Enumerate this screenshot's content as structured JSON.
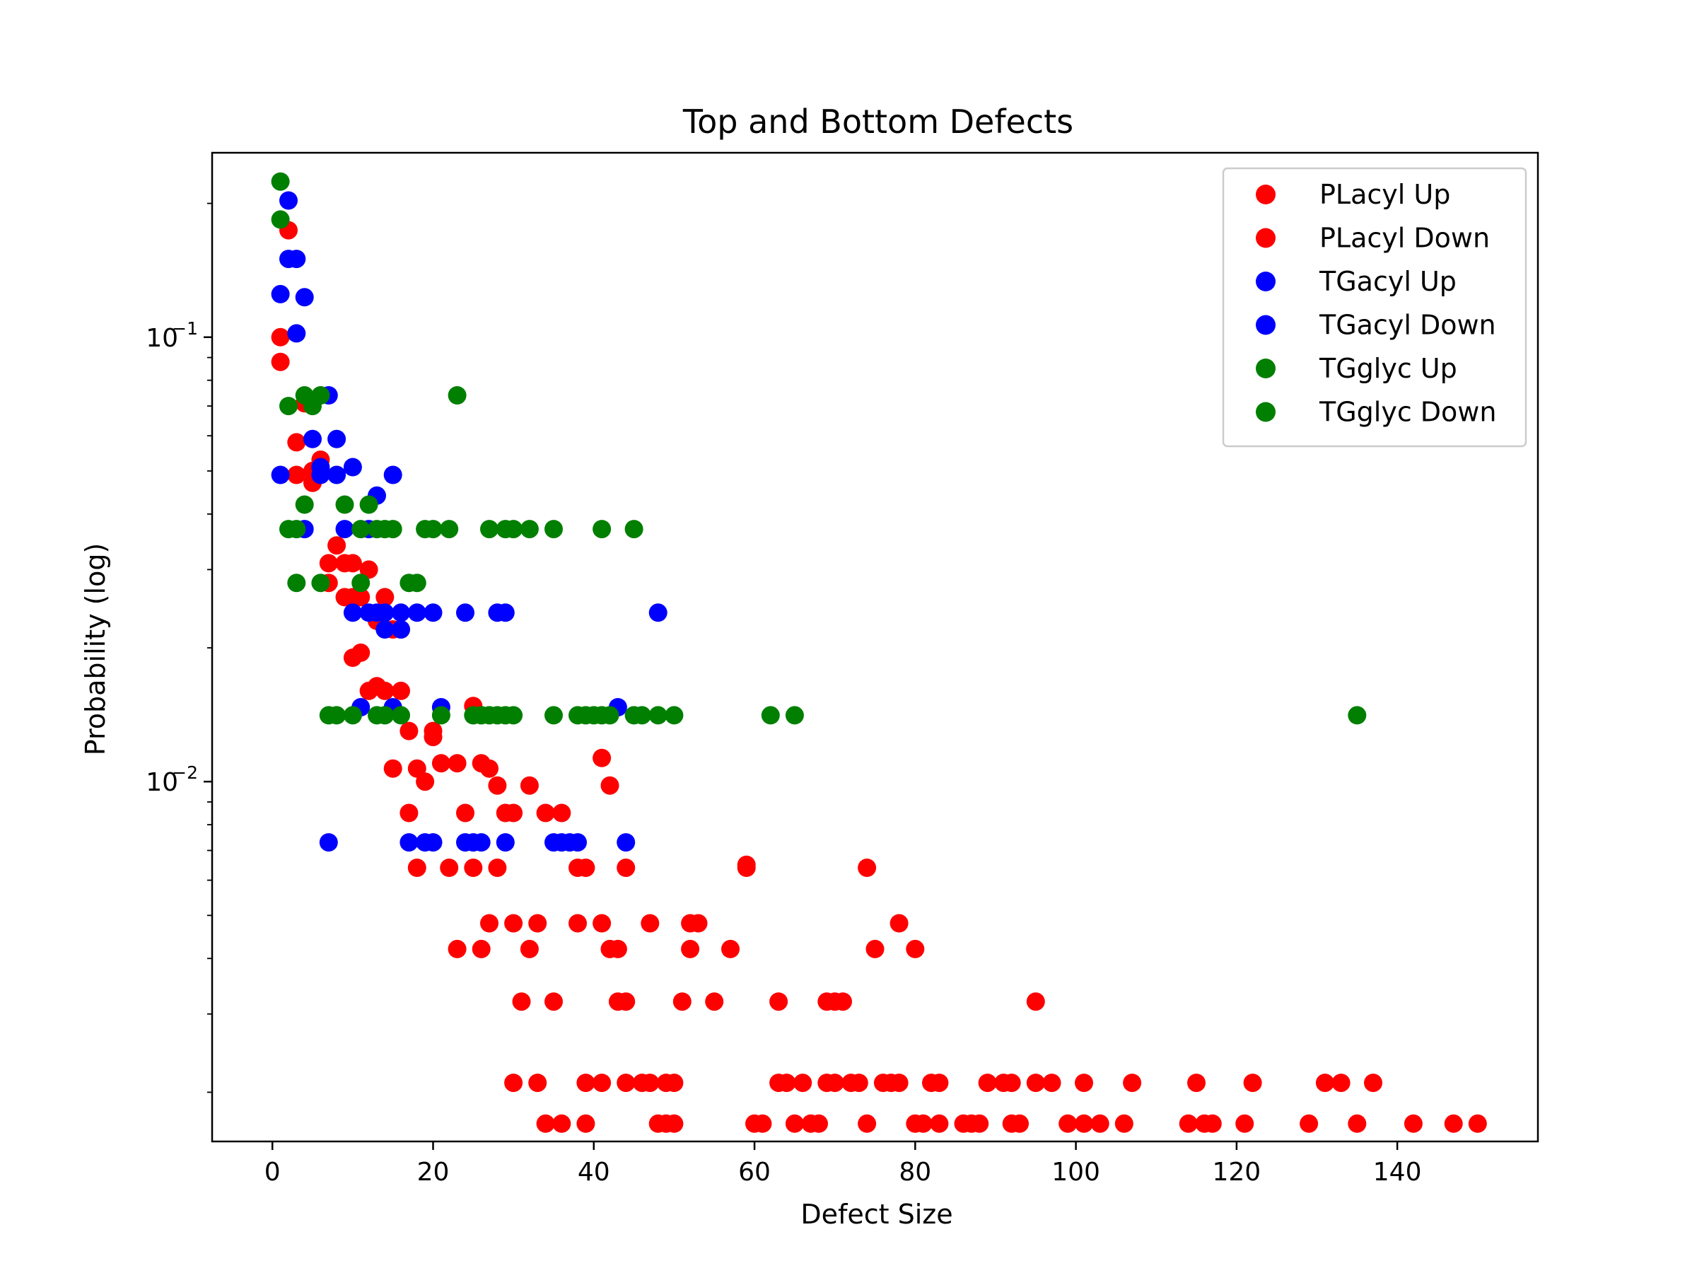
{
  "chart_data": {
    "type": "scatter",
    "title": "Top and Bottom Defects",
    "xlabel": "Defect Size",
    "ylabel": "Probability (log)",
    "xlim": [
      -7.5,
      157.5
    ],
    "ylim": [
      0.00155,
      0.26
    ],
    "yscale": "log",
    "grid": false,
    "legend_position": "top-right",
    "x_ticks": [
      0,
      20,
      40,
      60,
      80,
      100,
      120,
      140
    ],
    "x_tick_labels": [
      "0",
      "20",
      "40",
      "60",
      "80",
      "100",
      "120",
      "140"
    ],
    "y_ticks": [
      0.1,
      0.01
    ],
    "y_tick_labels": [
      {
        "base": "10",
        "exp": "−1"
      },
      {
        "base": "10",
        "exp": "−2"
      }
    ],
    "series": [
      {
        "name": "PLacyl Up",
        "color": "#ff0000",
        "points": [
          [
            1,
            0.1
          ],
          [
            2,
            0.174
          ],
          [
            3,
            0.058
          ],
          [
            4,
            0.071
          ],
          [
            5,
            0.05
          ],
          [
            6,
            0.053
          ],
          [
            7,
            0.031
          ],
          [
            9,
            0.031
          ],
          [
            10,
            0.026
          ],
          [
            12,
            0.03
          ],
          [
            14,
            0.026
          ],
          [
            16,
            0.022
          ],
          [
            17,
            0.013
          ],
          [
            19,
            0.01
          ],
          [
            20,
            0.013
          ],
          [
            21,
            0.011
          ],
          [
            23,
            0.011
          ],
          [
            24,
            0.0085
          ],
          [
            26,
            0.011
          ],
          [
            28,
            0.0098
          ],
          [
            29,
            0.0085
          ],
          [
            30,
            0.0085
          ],
          [
            32,
            0.0098
          ],
          [
            34,
            0.0085
          ],
          [
            36,
            0.0085
          ],
          [
            38,
            0.0064
          ],
          [
            39,
            0.0064
          ],
          [
            41,
            0.0113
          ],
          [
            42,
            0.0098
          ],
          [
            44,
            0.0064
          ],
          [
            25,
            0.0148
          ],
          [
            18,
            0.0107
          ],
          [
            15,
            0.0107
          ],
          [
            13,
            0.0164
          ],
          [
            27,
            0.0048
          ],
          [
            30,
            0.0048
          ],
          [
            33,
            0.0048
          ],
          [
            38,
            0.0048
          ],
          [
            41,
            0.0048
          ],
          [
            47,
            0.0048
          ],
          [
            52,
            0.0048
          ],
          [
            53,
            0.0048
          ],
          [
            23,
            0.0042
          ],
          [
            26,
            0.0042
          ],
          [
            32,
            0.0042
          ],
          [
            42,
            0.0042
          ],
          [
            43,
            0.0042
          ],
          [
            52,
            0.0042
          ],
          [
            57,
            0.0042
          ],
          [
            59,
            0.0064
          ],
          [
            74,
            0.0064
          ],
          [
            75,
            0.0042
          ],
          [
            78,
            0.0048
          ],
          [
            80,
            0.0042
          ],
          [
            31,
            0.0032
          ],
          [
            35,
            0.0032
          ],
          [
            43,
            0.0032
          ],
          [
            44,
            0.0032
          ],
          [
            51,
            0.0032
          ],
          [
            55,
            0.0032
          ],
          [
            63,
            0.0032
          ],
          [
            69,
            0.0032
          ],
          [
            70,
            0.0032
          ],
          [
            71,
            0.0032
          ],
          [
            95,
            0.0032
          ],
          [
            30,
            0.0021
          ],
          [
            33,
            0.0021
          ],
          [
            39,
            0.0021
          ],
          [
            41,
            0.0021
          ],
          [
            44,
            0.0021
          ],
          [
            46,
            0.0021
          ],
          [
            47,
            0.0021
          ],
          [
            49,
            0.0021
          ],
          [
            50,
            0.0021
          ],
          [
            63,
            0.0021
          ],
          [
            64,
            0.0021
          ],
          [
            66,
            0.0021
          ],
          [
            69,
            0.0021
          ],
          [
            70,
            0.0021
          ],
          [
            72,
            0.0021
          ],
          [
            73,
            0.0021
          ],
          [
            76,
            0.0021
          ],
          [
            77,
            0.0021
          ],
          [
            78,
            0.0021
          ],
          [
            82,
            0.0021
          ],
          [
            83,
            0.0021
          ],
          [
            89,
            0.0021
          ],
          [
            91,
            0.0021
          ],
          [
            92,
            0.0021
          ],
          [
            95,
            0.0021
          ],
          [
            97,
            0.0021
          ],
          [
            101,
            0.0021
          ],
          [
            107,
            0.0021
          ],
          [
            115,
            0.0021
          ],
          [
            122,
            0.0021
          ],
          [
            131,
            0.0021
          ],
          [
            133,
            0.0021
          ],
          [
            137,
            0.0021
          ]
        ]
      },
      {
        "name": "PLacyl Down",
        "color": "#ff0000",
        "points": [
          [
            1,
            0.088
          ],
          [
            3,
            0.049
          ],
          [
            5,
            0.047
          ],
          [
            7,
            0.028
          ],
          [
            8,
            0.034
          ],
          [
            9,
            0.026
          ],
          [
            10,
            0.031
          ],
          [
            11,
            0.026
          ],
          [
            12,
            0.016
          ],
          [
            13,
            0.023
          ],
          [
            14,
            0.016
          ],
          [
            15,
            0.022
          ],
          [
            16,
            0.016
          ],
          [
            10,
            0.019
          ],
          [
            11,
            0.0195
          ],
          [
            17,
            0.0085
          ],
          [
            18,
            0.0064
          ],
          [
            20,
            0.0126
          ],
          [
            22,
            0.0064
          ],
          [
            25,
            0.0064
          ],
          [
            27,
            0.0107
          ],
          [
            28,
            0.0064
          ],
          [
            59,
            0.0065
          ],
          [
            34,
            0.0017
          ],
          [
            36,
            0.0017
          ],
          [
            39,
            0.0017
          ],
          [
            48,
            0.0017
          ],
          [
            49,
            0.0017
          ],
          [
            50,
            0.0017
          ],
          [
            60,
            0.0017
          ],
          [
            61,
            0.0017
          ],
          [
            65,
            0.0017
          ],
          [
            67,
            0.0017
          ],
          [
            68,
            0.0017
          ],
          [
            74,
            0.0017
          ],
          [
            80,
            0.0017
          ],
          [
            81,
            0.0017
          ],
          [
            83,
            0.0017
          ],
          [
            86,
            0.0017
          ],
          [
            87,
            0.0017
          ],
          [
            88,
            0.0017
          ],
          [
            92,
            0.0017
          ],
          [
            93,
            0.0017
          ],
          [
            99,
            0.0017
          ],
          [
            101,
            0.0017
          ],
          [
            103,
            0.0017
          ],
          [
            106,
            0.0017
          ],
          [
            114,
            0.0017
          ],
          [
            116,
            0.0017
          ],
          [
            117,
            0.0017
          ],
          [
            121,
            0.0017
          ],
          [
            129,
            0.0017
          ],
          [
            135,
            0.0017
          ],
          [
            142,
            0.0017
          ],
          [
            147,
            0.0017
          ],
          [
            150,
            0.0017
          ]
        ]
      },
      {
        "name": "TGacyl Up",
        "color": "#0000ff",
        "points": [
          [
            2,
            0.203
          ],
          [
            1,
            0.125
          ],
          [
            2,
            0.15
          ],
          [
            3,
            0.15
          ],
          [
            3,
            0.102
          ],
          [
            4,
            0.123
          ],
          [
            5,
            0.059
          ],
          [
            7,
            0.074
          ],
          [
            8,
            0.059
          ],
          [
            1,
            0.049
          ],
          [
            6,
            0.051
          ],
          [
            10,
            0.051
          ],
          [
            13,
            0.044
          ],
          [
            15,
            0.049
          ],
          [
            4,
            0.037
          ],
          [
            9,
            0.037
          ],
          [
            12,
            0.037
          ],
          [
            10,
            0.024
          ],
          [
            12,
            0.024
          ],
          [
            13,
            0.024
          ],
          [
            14,
            0.024
          ],
          [
            16,
            0.024
          ],
          [
            18,
            0.024
          ],
          [
            20,
            0.024
          ],
          [
            24,
            0.024
          ],
          [
            28,
            0.024
          ],
          [
            29,
            0.024
          ],
          [
            48,
            0.024
          ]
        ]
      },
      {
        "name": "TGacyl Down",
        "color": "#0000ff",
        "points": [
          [
            6,
            0.049
          ],
          [
            8,
            0.049
          ],
          [
            14,
            0.022
          ],
          [
            16,
            0.022
          ],
          [
            11,
            0.0147
          ],
          [
            15,
            0.0147
          ],
          [
            21,
            0.0147
          ],
          [
            43,
            0.0147
          ],
          [
            7,
            0.0073
          ],
          [
            17,
            0.0073
          ],
          [
            19,
            0.0073
          ],
          [
            20,
            0.0073
          ],
          [
            24,
            0.0073
          ],
          [
            25,
            0.0073
          ],
          [
            26,
            0.0073
          ],
          [
            29,
            0.0073
          ],
          [
            35,
            0.0073
          ],
          [
            36,
            0.0073
          ],
          [
            37,
            0.0073
          ],
          [
            38,
            0.0073
          ],
          [
            44,
            0.0073
          ]
        ]
      },
      {
        "name": "TGglyc Up",
        "color": "#007f00",
        "points": [
          [
            1,
            0.224
          ],
          [
            1,
            0.184
          ],
          [
            2,
            0.07
          ],
          [
            4,
            0.074
          ],
          [
            5,
            0.07
          ],
          [
            6,
            0.074
          ],
          [
            23,
            0.074
          ],
          [
            4,
            0.042
          ],
          [
            9,
            0.042
          ],
          [
            12,
            0.042
          ],
          [
            2,
            0.037
          ],
          [
            3,
            0.037
          ],
          [
            11,
            0.037
          ],
          [
            13,
            0.037
          ],
          [
            14,
            0.037
          ],
          [
            15,
            0.037
          ],
          [
            19,
            0.037
          ],
          [
            20,
            0.037
          ],
          [
            22,
            0.037
          ],
          [
            27,
            0.037
          ],
          [
            29,
            0.037
          ],
          [
            30,
            0.037
          ],
          [
            32,
            0.037
          ],
          [
            35,
            0.037
          ],
          [
            41,
            0.037
          ],
          [
            45,
            0.037
          ],
          [
            3,
            0.028
          ],
          [
            6,
            0.028
          ],
          [
            11,
            0.028
          ],
          [
            17,
            0.028
          ],
          [
            18,
            0.028
          ]
        ]
      },
      {
        "name": "TGglyc Down",
        "color": "#007f00",
        "points": [
          [
            7,
            0.0141
          ],
          [
            8,
            0.0141
          ],
          [
            10,
            0.0141
          ],
          [
            13,
            0.0141
          ],
          [
            14,
            0.0141
          ],
          [
            16,
            0.0141
          ],
          [
            21,
            0.0141
          ],
          [
            25,
            0.0141
          ],
          [
            26,
            0.0141
          ],
          [
            27,
            0.0141
          ],
          [
            28,
            0.0141
          ],
          [
            29,
            0.0141
          ],
          [
            30,
            0.0141
          ],
          [
            35,
            0.0141
          ],
          [
            38,
            0.0141
          ],
          [
            39,
            0.0141
          ],
          [
            40,
            0.0141
          ],
          [
            41,
            0.0141
          ],
          [
            42,
            0.0141
          ],
          [
            45,
            0.0141
          ],
          [
            46,
            0.0141
          ],
          [
            48,
            0.0141
          ],
          [
            50,
            0.0141
          ],
          [
            62,
            0.0141
          ],
          [
            65,
            0.0141
          ],
          [
            135,
            0.0141
          ]
        ]
      }
    ]
  }
}
